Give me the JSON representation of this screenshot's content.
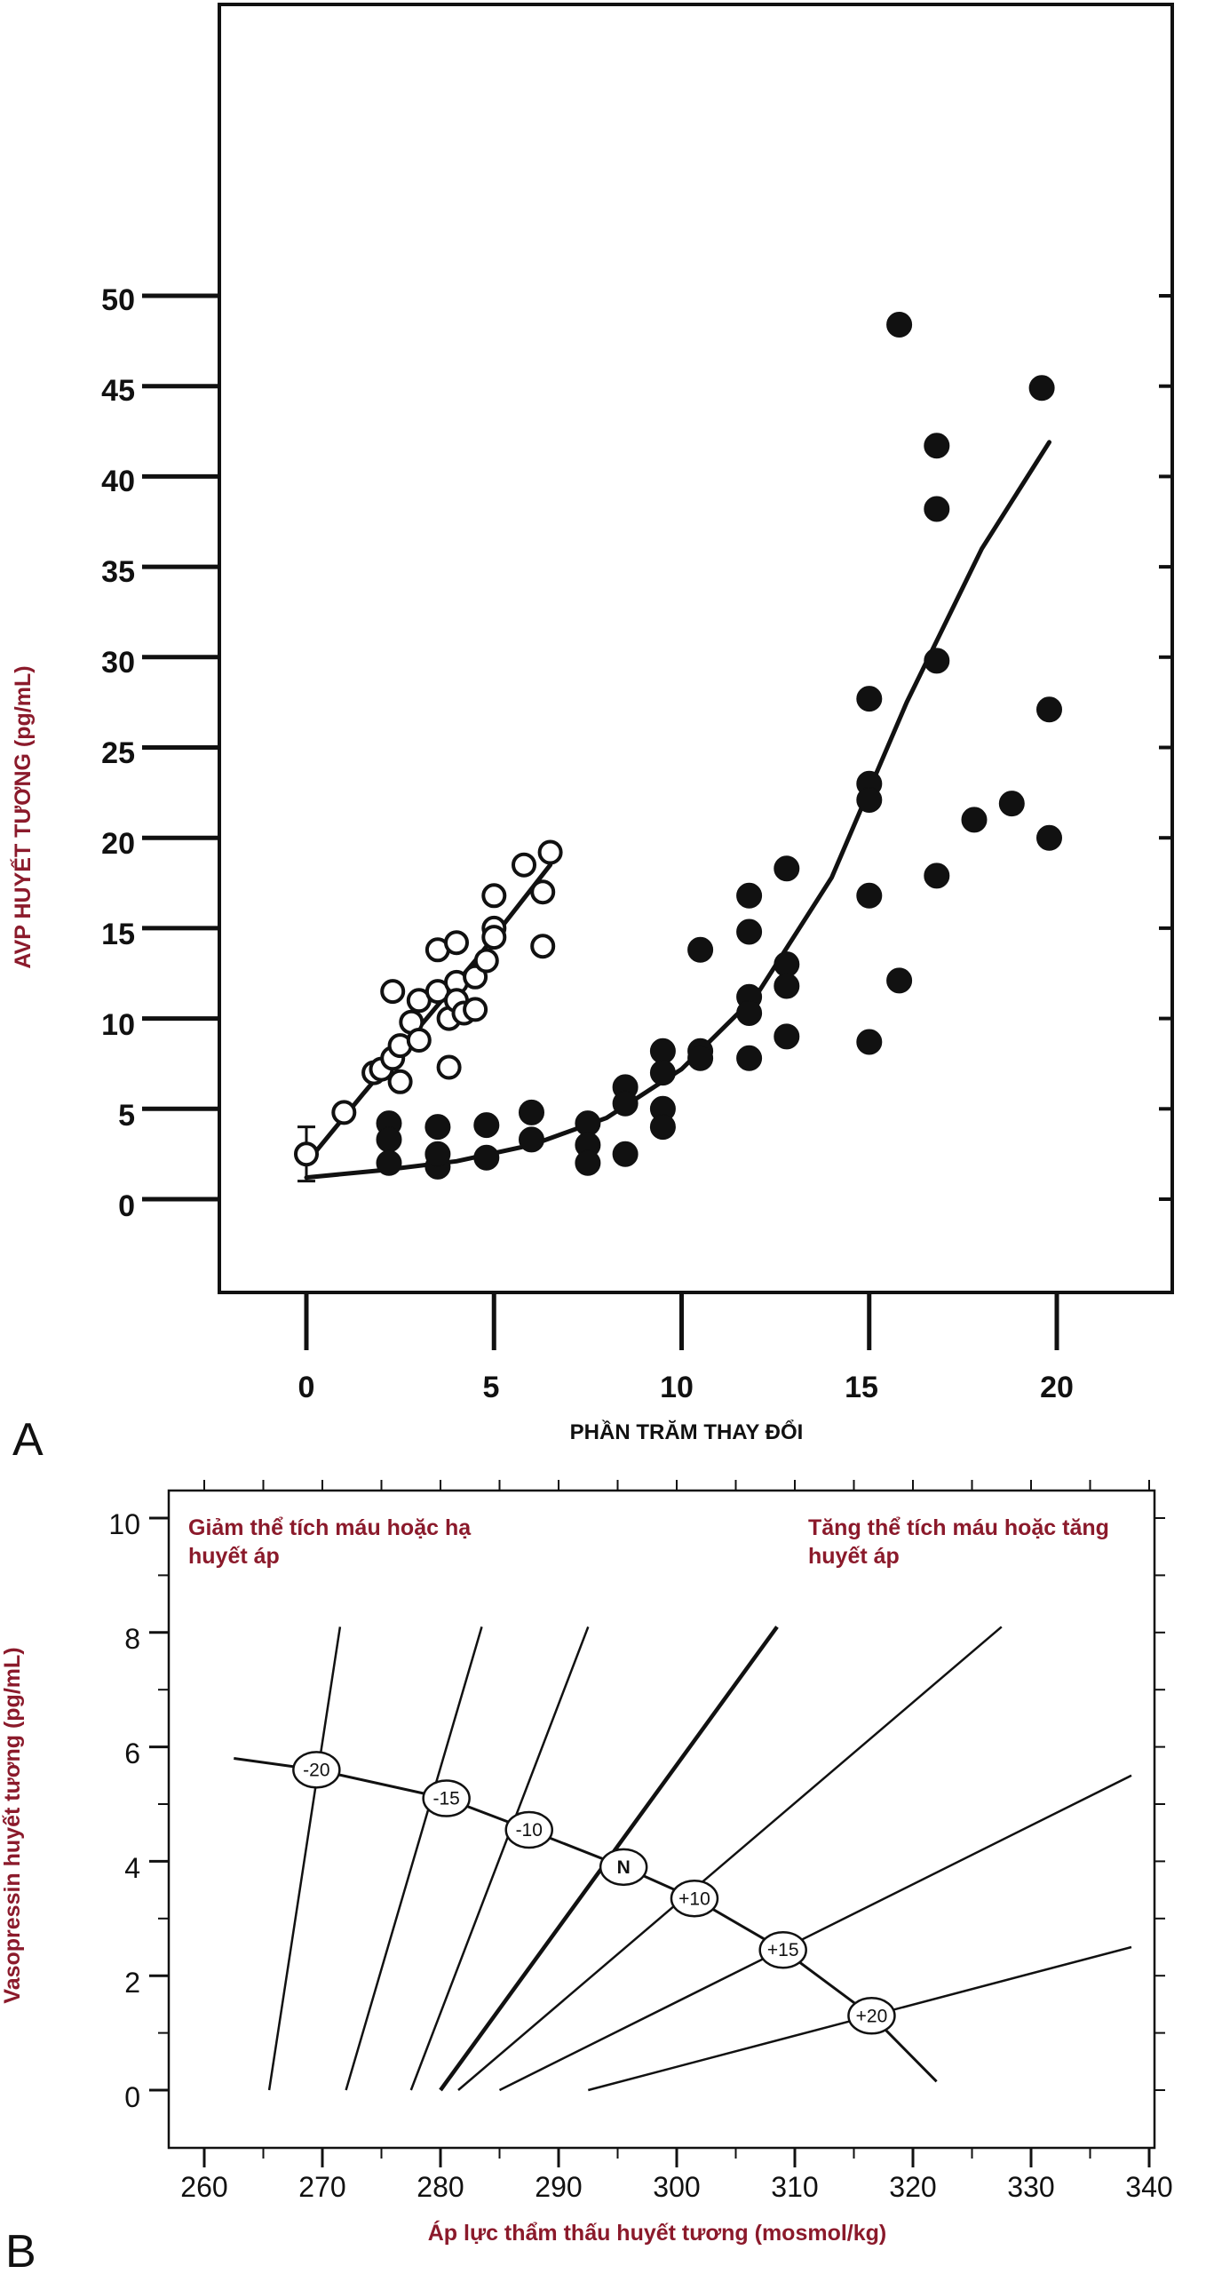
{
  "chart_data": [
    {
      "panel": "A",
      "type": "scatter",
      "xlabel": "PHẦN TRĂM THAY ĐỔI",
      "ylabel": "AVP HUYẾT TƯƠNG (pg/mL)",
      "xlim": [
        0,
        20
      ],
      "ylim": [
        0,
        50
      ],
      "xticks": [
        "0",
        "5",
        "10",
        "15",
        "20"
      ],
      "yticks": [
        "0",
        "5",
        "10",
        "15",
        "20",
        "25",
        "30",
        "35",
        "40",
        "45",
        "50"
      ],
      "series": [
        {
          "marker": "open-circle",
          "points": [
            [
              0,
              2.5
            ],
            [
              1,
              4.8
            ],
            [
              1.8,
              7
            ],
            [
              2,
              7.2
            ],
            [
              2.3,
              11.5
            ],
            [
              2.3,
              7.8
            ],
            [
              2.5,
              6.5
            ],
            [
              2.5,
              8.5
            ],
            [
              2.8,
              9.8
            ],
            [
              3,
              11
            ],
            [
              3,
              8.8
            ],
            [
              3.5,
              11.5
            ],
            [
              3.5,
              13.8
            ],
            [
              3.8,
              10
            ],
            [
              3.8,
              7.3
            ],
            [
              4,
              14.2
            ],
            [
              4,
              12
            ],
            [
              4,
              11
            ],
            [
              4.2,
              10.3
            ],
            [
              4.5,
              12.3
            ],
            [
              4.5,
              10.5
            ],
            [
              4.8,
              13.2
            ],
            [
              5,
              15
            ],
            [
              5,
              16.8
            ],
            [
              5,
              14.5
            ],
            [
              5.8,
              18.5
            ],
            [
              6.3,
              17
            ],
            [
              6.3,
              14
            ],
            [
              6.5,
              19.2
            ]
          ],
          "fit": [
            [
              0,
              2
            ],
            [
              1.5,
              5.8
            ],
            [
              3,
              9.5
            ],
            [
              4.5,
              13.2
            ],
            [
              6.5,
              18.5
            ]
          ]
        },
        {
          "marker": "filled-circle",
          "points": [
            [
              2.2,
              4.2
            ],
            [
              2.2,
              3.3
            ],
            [
              2.2,
              2
            ],
            [
              3.5,
              4
            ],
            [
              3.5,
              1.8
            ],
            [
              3.5,
              2.5
            ],
            [
              4.8,
              2.3
            ],
            [
              4.8,
              4.1
            ],
            [
              6,
              3.3
            ],
            [
              6,
              4.8
            ],
            [
              7.5,
              4.2
            ],
            [
              7.5,
              3
            ],
            [
              7.5,
              2
            ],
            [
              8.5,
              6.2
            ],
            [
              8.5,
              5.3
            ],
            [
              8.5,
              2.5
            ],
            [
              9.5,
              8.2
            ],
            [
              9.5,
              7
            ],
            [
              9.5,
              5
            ],
            [
              9.5,
              4
            ],
            [
              10.5,
              13.8
            ],
            [
              10.5,
              8.2
            ],
            [
              10.5,
              7.8
            ],
            [
              11.8,
              16.8
            ],
            [
              11.8,
              14.8
            ],
            [
              11.8,
              11.2
            ],
            [
              11.8,
              10.3
            ],
            [
              11.8,
              7.8
            ],
            [
              12.8,
              18.3
            ],
            [
              12.8,
              13
            ],
            [
              12.8,
              11.8
            ],
            [
              12.8,
              9
            ],
            [
              15,
              27.7
            ],
            [
              15,
              23
            ],
            [
              15,
              22.1
            ],
            [
              15,
              16.8
            ],
            [
              15,
              8.7
            ],
            [
              15.8,
              48.4
            ],
            [
              15.8,
              12.1
            ],
            [
              16.8,
              41.7
            ],
            [
              16.8,
              38.2
            ],
            [
              16.8,
              29.8
            ],
            [
              16.8,
              17.9
            ],
            [
              17.8,
              21
            ],
            [
              18.8,
              21.9
            ],
            [
              19.6,
              44.9
            ],
            [
              19.8,
              27.1
            ],
            [
              19.8,
              20
            ]
          ],
          "fit": [
            [
              0,
              1.2
            ],
            [
              2,
              1.6
            ],
            [
              4,
              2.1
            ],
            [
              6,
              3
            ],
            [
              8,
              4.5
            ],
            [
              10,
              7.2
            ],
            [
              12,
              11.3
            ],
            [
              14,
              17.8
            ],
            [
              16,
              27.5
            ],
            [
              18,
              36
            ],
            [
              19.8,
              41.9
            ]
          ]
        }
      ]
    },
    {
      "panel": "B",
      "type": "line",
      "xlabel": "Áp lực thẩm thấu huyết tương (mosmol/kg)",
      "ylabel": "Vasopressin huyết tương (pg/mL)",
      "xlim": [
        260,
        340
      ],
      "ylim": [
        0,
        10
      ],
      "xticks": [
        "260",
        "270",
        "280",
        "290",
        "300",
        "310",
        "320",
        "330",
        "340"
      ],
      "yticks": [
        "0",
        "2",
        "4",
        "6",
        "8",
        "10"
      ],
      "annotations": [
        "Giảm thể tích máu hoặc hạ huyết áp",
        "Tăng thể tích máu hoặc tăng huyết áp"
      ],
      "series": [
        {
          "name": "-20",
          "points": [
            [
              265.5,
              0
            ],
            [
              271.5,
              8.1
            ]
          ]
        },
        {
          "name": "-15",
          "points": [
            [
              272,
              0
            ],
            [
              283.5,
              8.1
            ]
          ]
        },
        {
          "name": "-10",
          "points": [
            [
              277.5,
              0
            ],
            [
              292.5,
              8.1
            ]
          ]
        },
        {
          "name": "N",
          "points": [
            [
              280,
              0
            ],
            [
              308.5,
              8.1
            ]
          ]
        },
        {
          "name": "+10",
          "points": [
            [
              281.5,
              0
            ],
            [
              327.5,
              8.1
            ]
          ]
        },
        {
          "name": "+15",
          "points": [
            [
              285,
              0
            ],
            [
              338.5,
              5.5
            ]
          ]
        },
        {
          "name": "+20",
          "points": [
            [
              292.5,
              0
            ],
            [
              338.5,
              2.5
            ]
          ]
        }
      ],
      "set_point_curve": [
        [
          262.5,
          5.8
        ],
        [
          269.5,
          5.6
        ],
        [
          280.5,
          5.1
        ],
        [
          287.5,
          4.55
        ],
        [
          295.5,
          3.9
        ],
        [
          301.5,
          3.35
        ],
        [
          309,
          2.45
        ],
        [
          316.5,
          1.3
        ],
        [
          322,
          0.15
        ]
      ],
      "markers": [
        {
          "label": "-20",
          "x": 269.5,
          "y": 5.6
        },
        {
          "label": "-15",
          "x": 280.5,
          "y": 5.1
        },
        {
          "label": "-10",
          "x": 287.5,
          "y": 4.55
        },
        {
          "label": "N",
          "x": 295.5,
          "y": 3.9
        },
        {
          "label": "+10",
          "x": 301.5,
          "y": 3.35
        },
        {
          "label": "+15",
          "x": 309,
          "y": 2.45
        },
        {
          "label": "+20",
          "x": 316.5,
          "y": 1.3
        }
      ]
    }
  ],
  "panel_letters": [
    "A",
    "B"
  ]
}
